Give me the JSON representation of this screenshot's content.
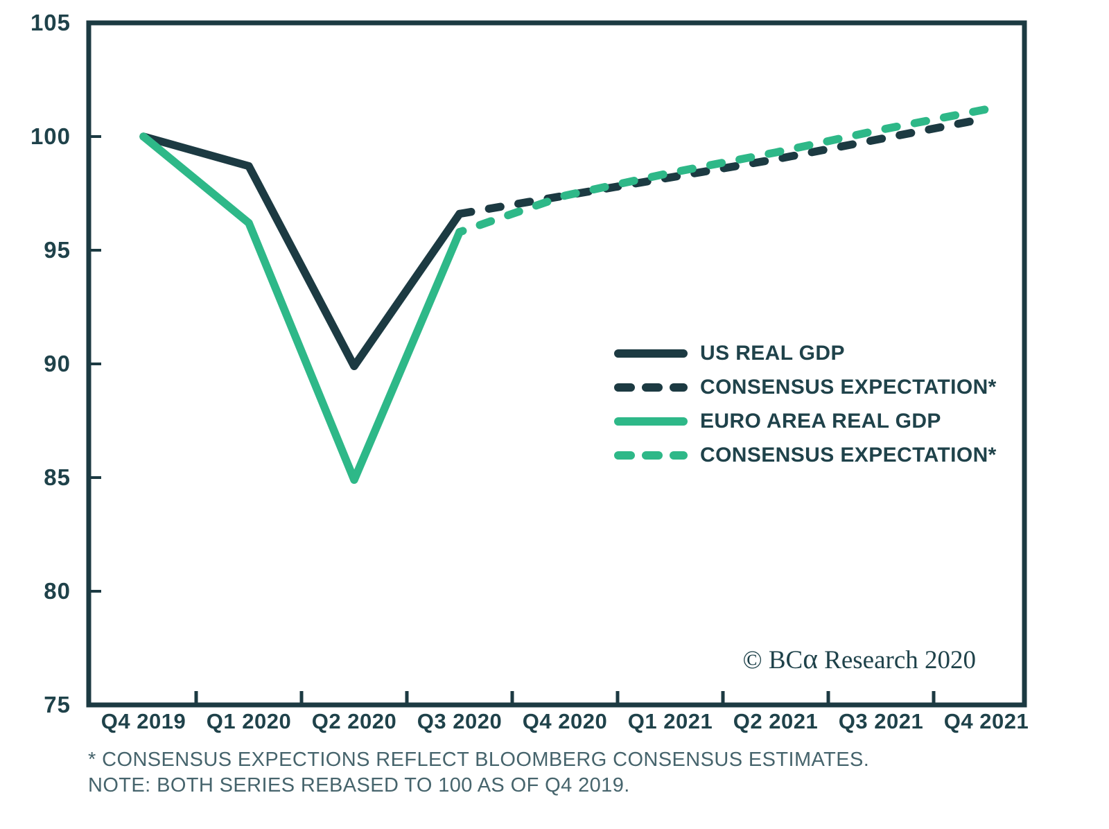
{
  "colors": {
    "dark_line": "#1c3a42",
    "green_line": "#2eb888",
    "text_dark": "#1f424a",
    "footnote_text": "#46646c",
    "background": "#ffffff"
  },
  "chart_data": {
    "type": "line",
    "title": "",
    "xlabel": "",
    "ylabel": "",
    "grid": false,
    "legend_position": "middle-right",
    "note": "Both series rebased to 100 as of Q4 2019",
    "categories": [
      "Q4 2019",
      "Q1 2020",
      "Q2 2020",
      "Q3 2020",
      "Q4 2020",
      "Q1 2021",
      "Q2 2021",
      "Q3 2021",
      "Q4 2021"
    ],
    "ylim": [
      75,
      105
    ],
    "y_ticks": [
      105,
      100,
      95,
      90,
      85,
      80,
      75
    ],
    "series": [
      {
        "name": "US REAL GDP",
        "style": "solid",
        "color": "#1c3a42",
        "values": [
          100,
          98.7,
          89.9,
          96.6,
          null,
          null,
          null,
          null,
          null
        ]
      },
      {
        "name": "CONSENSUS EXPECTATION*",
        "style": "dashed",
        "color": "#1c3a42",
        "values": [
          null,
          null,
          null,
          96.6,
          97.4,
          98.2,
          99.0,
          99.9,
          100.8
        ]
      },
      {
        "name": "EURO AREA REAL GDP",
        "style": "solid",
        "color": "#2eb888",
        "values": [
          100,
          96.2,
          84.9,
          95.8,
          null,
          null,
          null,
          null,
          null
        ]
      },
      {
        "name": "CONSENSUS EXPECTATION*",
        "style": "dashed",
        "color": "#2eb888",
        "values": [
          null,
          null,
          null,
          95.8,
          97.4,
          98.4,
          99.3,
          100.3,
          101.2
        ]
      }
    ]
  },
  "credit": {
    "prefix": "© BC",
    "alpha": "α",
    "rest": " Research ",
    "year": "2020"
  },
  "footnotes": [
    "* CONSENSUS EXPECTIONS REFLECT BLOOMBERG CONSENSUS ESTIMATES.",
    "NOTE: BOTH SERIES REBASED TO 100 AS OF Q4 2019."
  ]
}
